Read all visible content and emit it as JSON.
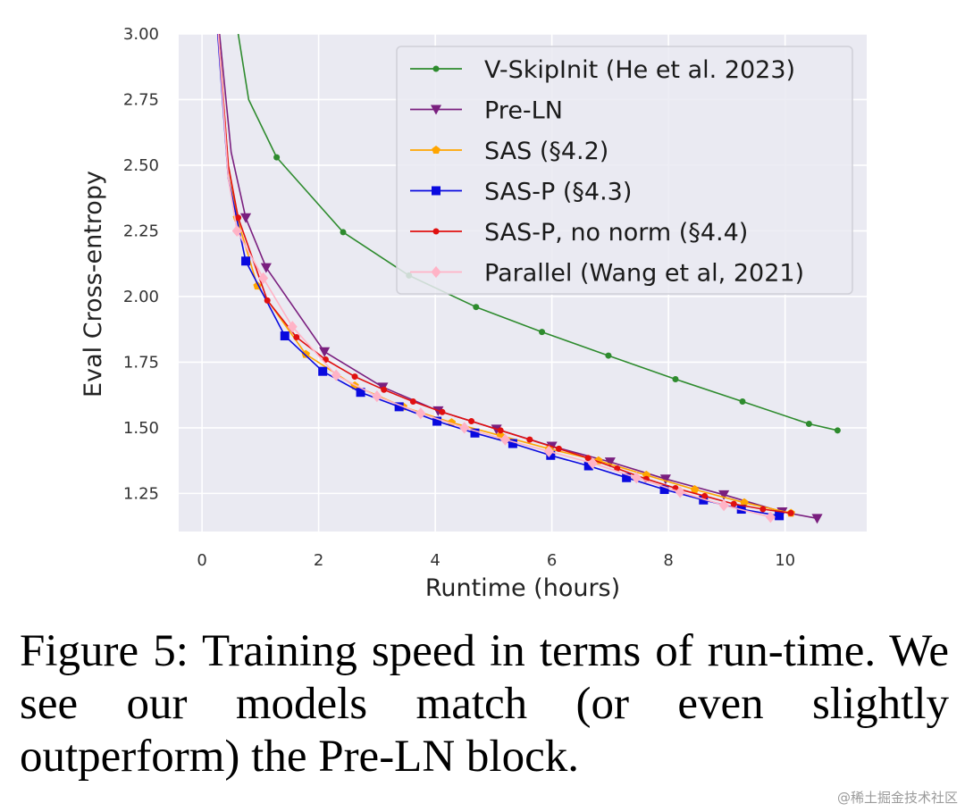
{
  "chart_data": {
    "type": "line",
    "xlabel": "Runtime (hours)",
    "ylabel": "Eval Cross-entropy",
    "xlim": [
      -0.4,
      11.4
    ],
    "ylim": [
      1.105,
      3.0
    ],
    "xticks": [
      0,
      2,
      4,
      6,
      8,
      10
    ],
    "yticks": [
      1.25,
      1.5,
      1.75,
      2.0,
      2.25,
      2.5,
      2.75,
      3.0
    ],
    "xtick_labels": [
      "0",
      "2",
      "4",
      "6",
      "8",
      "10"
    ],
    "ytick_labels": [
      "1.25",
      "1.50",
      "1.75",
      "2.00",
      "2.25",
      "2.50",
      "2.75",
      "3.00"
    ],
    "grid": true,
    "legend_position": "top-right",
    "series": [
      {
        "name": "V-SkipInit (He et al. 2023)",
        "color": "#2e8b2e",
        "marker": "circle",
        "x": [
          0.62,
          0.8,
          1.28,
          2.42,
          3.55,
          4.7,
          5.83,
          6.97,
          8.12,
          9.27,
          10.41,
          10.9
        ],
        "y": [
          3.0,
          2.75,
          2.53,
          2.245,
          2.08,
          1.96,
          1.865,
          1.775,
          1.685,
          1.6,
          1.515,
          1.49
        ]
      },
      {
        "name": "Pre-LN",
        "color": "#7a1f7f",
        "marker": "triangle-down",
        "x": [
          0.3,
          0.5,
          0.75,
          1.1,
          2.1,
          3.1,
          4.05,
          5.05,
          6.0,
          7.0,
          7.95,
          8.95,
          9.95,
          10.55
        ],
        "y": [
          3.0,
          2.55,
          2.3,
          2.11,
          1.79,
          1.655,
          1.565,
          1.495,
          1.43,
          1.37,
          1.305,
          1.245,
          1.18,
          1.155
        ]
      },
      {
        "name": "SAS (§4.2)",
        "color": "#ffa500",
        "marker": "pentagon",
        "x": [
          0.28,
          0.45,
          0.6,
          0.95,
          1.78,
          2.62,
          3.45,
          4.28,
          5.12,
          5.95,
          6.8,
          7.62,
          8.45,
          9.3,
          10.1
        ],
        "y": [
          3.0,
          2.5,
          2.3,
          2.04,
          1.78,
          1.66,
          1.58,
          1.52,
          1.47,
          1.42,
          1.375,
          1.32,
          1.265,
          1.215,
          1.175
        ]
      },
      {
        "name": "SAS-P (§4.3)",
        "color": "#0a0adf",
        "marker": "square",
        "x": [
          0.27,
          0.45,
          0.75,
          1.42,
          2.07,
          2.72,
          3.38,
          4.03,
          4.68,
          5.33,
          5.98,
          6.63,
          7.28,
          7.93,
          8.6,
          9.25,
          9.9
        ],
        "y": [
          3.0,
          2.45,
          2.135,
          1.85,
          1.715,
          1.635,
          1.58,
          1.525,
          1.48,
          1.44,
          1.395,
          1.355,
          1.31,
          1.265,
          1.225,
          1.19,
          1.165
        ]
      },
      {
        "name": "SAS-P, no norm (§4.4)",
        "color": "#e01010",
        "marker": "circle",
        "x": [
          0.28,
          0.45,
          0.62,
          1.12,
          1.62,
          2.12,
          2.62,
          3.12,
          3.62,
          4.12,
          4.62,
          5.12,
          5.62,
          6.12,
          6.62,
          7.12,
          7.62,
          8.12,
          8.62,
          9.12,
          9.62,
          10.1
        ],
        "y": [
          3.0,
          2.5,
          2.3,
          1.985,
          1.845,
          1.76,
          1.695,
          1.645,
          1.6,
          1.56,
          1.525,
          1.49,
          1.455,
          1.42,
          1.385,
          1.345,
          1.305,
          1.27,
          1.24,
          1.21,
          1.19,
          1.175
        ]
      },
      {
        "name": "Parallel (Wang et al, 2021)",
        "color": "#ffb3c6",
        "marker": "diamond",
        "x": [
          0.28,
          0.45,
          0.6,
          1.05,
          1.55,
          2.3,
          3.0,
          3.75,
          4.5,
          5.2,
          5.95,
          6.7,
          7.45,
          8.2,
          8.95,
          9.75
        ],
        "y": [
          3.0,
          2.45,
          2.25,
          2.07,
          1.885,
          1.7,
          1.62,
          1.555,
          1.5,
          1.455,
          1.41,
          1.365,
          1.31,
          1.255,
          1.205,
          1.16
        ]
      }
    ]
  },
  "caption": {
    "text": "Figure 5: Training speed in terms of run-time. We see our models match (or even slightly outperform) the Pre-LN block."
  },
  "watermark": "@稀土掘金技术社区"
}
